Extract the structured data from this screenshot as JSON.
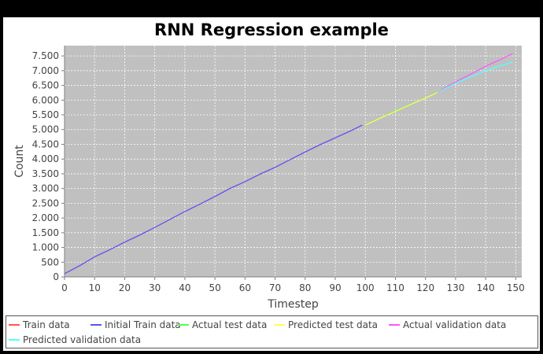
{
  "chart_data": {
    "type": "line",
    "title": "RNN Regression example",
    "xlabel": "Timestep",
    "ylabel": "Count",
    "xlim": [
      0,
      152
    ],
    "ylim": [
      0,
      7850
    ],
    "xticks": [
      0,
      10,
      20,
      30,
      40,
      50,
      60,
      70,
      80,
      90,
      100,
      110,
      120,
      130,
      140,
      150
    ],
    "xtick_labels": [
      "0",
      "10",
      "20",
      "30",
      "40",
      "50",
      "60",
      "70",
      "80",
      "90",
      "100",
      "110",
      "120",
      "130",
      "140",
      "150"
    ],
    "yticks": [
      0,
      500,
      1000,
      1500,
      2000,
      2500,
      3000,
      3500,
      4000,
      4500,
      5000,
      5500,
      6000,
      6500,
      7000,
      7500
    ],
    "ytick_labels": [
      "0",
      "500",
      "1.000",
      "1.500",
      "2.000",
      "2.500",
      "3.000",
      "3.500",
      "4.000",
      "4.500",
      "5.000",
      "5.500",
      "6.000",
      "6.500",
      "7.000",
      "7.500"
    ],
    "grid": true,
    "legend_position": "bottom",
    "series": [
      {
        "name": "Train data",
        "color": "#ff5555",
        "x": [
          0,
          5,
          10,
          15,
          20,
          25,
          30,
          35,
          40,
          45,
          50,
          55,
          60,
          65,
          70,
          75,
          80,
          85,
          90,
          95,
          99
        ],
        "y": [
          110,
          380,
          680,
          920,
          1180,
          1420,
          1680,
          1950,
          2220,
          2470,
          2730,
          3000,
          3230,
          3490,
          3720,
          3980,
          4240,
          4490,
          4720,
          4950,
          5150
        ]
      },
      {
        "name": "Initial Train data",
        "color": "#5555ff",
        "x": [
          0,
          5,
          10,
          15,
          20,
          25,
          30,
          35,
          40,
          45,
          50,
          55,
          60,
          65,
          70,
          75,
          80,
          85,
          90,
          95,
          99
        ],
        "y": [
          110,
          380,
          680,
          920,
          1180,
          1420,
          1680,
          1950,
          2220,
          2470,
          2730,
          3000,
          3230,
          3490,
          3720,
          3980,
          4240,
          4490,
          4720,
          4950,
          5150
        ]
      },
      {
        "name": "Actual test data",
        "color": "#55ff55",
        "x": [
          100,
          105,
          110,
          115,
          120,
          124
        ],
        "y": [
          5160,
          5400,
          5640,
          5860,
          6080,
          6270
        ]
      },
      {
        "name": "Predicted test data",
        "color": "#ffff55",
        "x": [
          100,
          105,
          110,
          115,
          120,
          124
        ],
        "y": [
          5150,
          5390,
          5620,
          5850,
          6070,
          6260
        ]
      },
      {
        "name": "Actual validation data",
        "color": "#ff55ff",
        "x": [
          125,
          130,
          135,
          140,
          145,
          149
        ],
        "y": [
          6340,
          6620,
          6880,
          7150,
          7380,
          7580
        ]
      },
      {
        "name": "Predicted validation data",
        "color": "#55ffff",
        "x": [
          125,
          130,
          135,
          140,
          145,
          149
        ],
        "y": [
          6320,
          6570,
          6790,
          7000,
          7170,
          7290
        ]
      }
    ]
  }
}
